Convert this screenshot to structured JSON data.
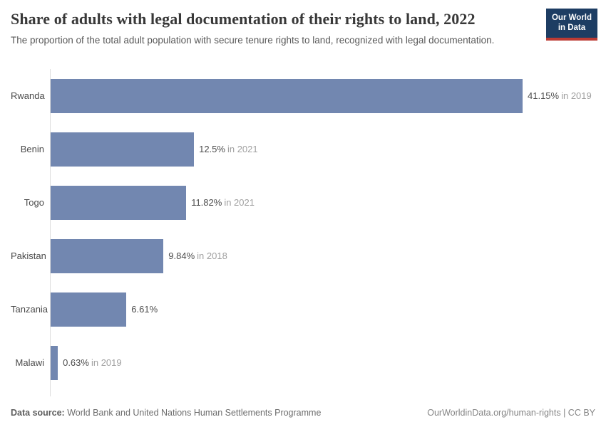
{
  "header": {
    "title": "Share of adults with legal documentation of their rights to land, 2022",
    "subtitle": "The proportion of the total adult population with secure tenure rights to land, recognized with legal documentation."
  },
  "logo": {
    "line1": "Our World",
    "line2": "in Data",
    "bg_color": "#1d3d63",
    "accent_color": "#bc3b34"
  },
  "chart_data": {
    "type": "bar",
    "orientation": "horizontal",
    "title": "Share of adults with legal documentation of their rights to land, 2022",
    "categories": [
      "Rwanda",
      "Benin",
      "Togo",
      "Pakistan",
      "Tanzania",
      "Malawi"
    ],
    "values": [
      41.15,
      12.5,
      11.82,
      9.84,
      6.61,
      0.63
    ],
    "xlim": [
      0,
      41.15
    ],
    "grid": false,
    "bar_color": "#7287b0",
    "rows": [
      {
        "label": "Rwanda",
        "value": 41.15,
        "value_label": "41.15%",
        "year_label": "in 2019"
      },
      {
        "label": "Benin",
        "value": 12.5,
        "value_label": "12.5%",
        "year_label": "in 2021"
      },
      {
        "label": "Togo",
        "value": 11.82,
        "value_label": "11.82%",
        "year_label": "in 2021"
      },
      {
        "label": "Pakistan",
        "value": 9.84,
        "value_label": "9.84%",
        "year_label": "in 2018"
      },
      {
        "label": "Tanzania",
        "value": 6.61,
        "value_label": "6.61%",
        "year_label": ""
      },
      {
        "label": "Malawi",
        "value": 0.63,
        "value_label": "0.63%",
        "year_label": "in 2019"
      }
    ]
  },
  "footer": {
    "data_source_label": "Data source:",
    "data_source_text": "World Bank and United Nations Human Settlements Programme",
    "link_text": "OurWorldinData.org/human-rights | CC BY"
  }
}
